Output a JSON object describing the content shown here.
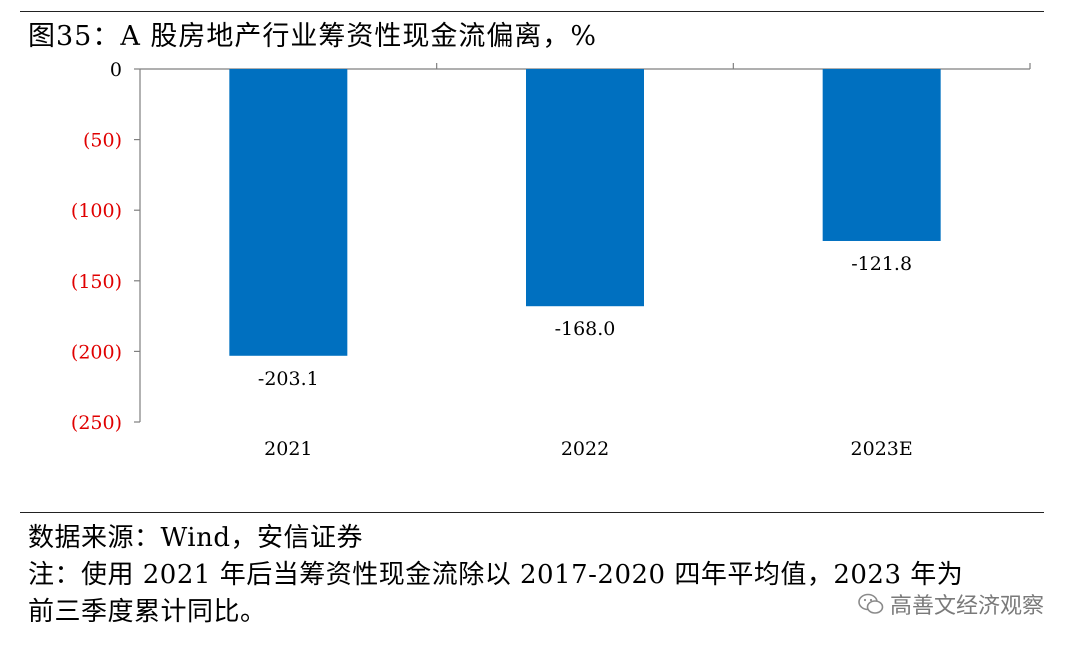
{
  "figure": {
    "title": "图35：A 股房地产行业筹资性现金流偏离，%"
  },
  "chart_data": {
    "type": "bar",
    "title": "图35：A 股房地产行业筹资性现金流偏离，%",
    "xlabel": "",
    "ylabel": "",
    "categories": [
      "2021",
      "2022",
      "2023E"
    ],
    "values": [
      -203.1,
      -168.0,
      -121.8
    ],
    "value_labels": [
      "-203.1",
      "-168.0",
      "-121.8"
    ],
    "ylim": [
      -250,
      0
    ],
    "yticks": [
      0,
      -50,
      -100,
      -150,
      -200,
      -250
    ],
    "ytick_labels": [
      "0",
      "(50)",
      "(100)",
      "(150)",
      "(200)",
      "(250)"
    ],
    "grid": false,
    "legend": "none",
    "colors": {
      "bar": "#0070C0",
      "negative_tick_label": "#E00000",
      "zero_tick_label": "#000000",
      "axis": "#7f7f7f"
    }
  },
  "footer": {
    "source": "数据来源：Wind，安信证券",
    "note_line1": "注：使用 2021 年后当筹资性现金流除以 2017-2020 四年平均值，2023 年为",
    "note_line2": "前三季度累计同比。"
  },
  "watermark": {
    "icon": "wechat-icon",
    "text": "高善文经济观察"
  }
}
